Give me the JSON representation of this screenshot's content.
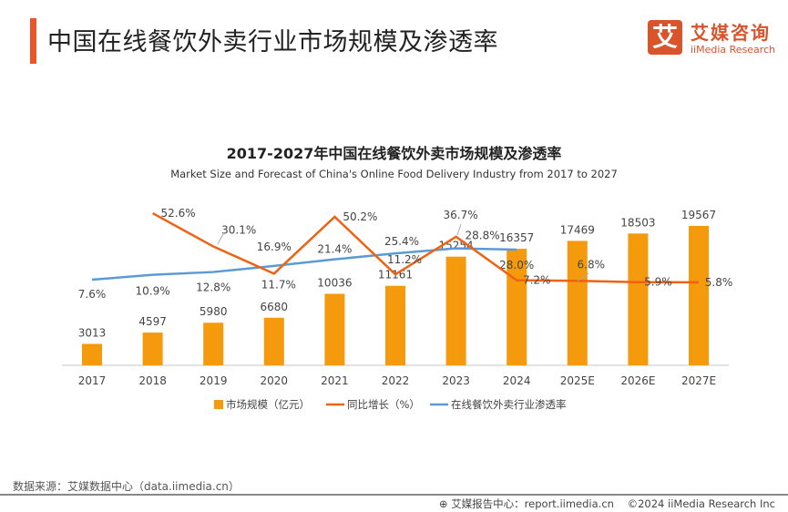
{
  "header": {
    "title": "中国在线餐饮外卖行业市场规模及渗透率",
    "logo_mark": "艾",
    "logo_cn": "艾媒咨询",
    "logo_en": "iiMedia Research"
  },
  "chart_data": {
    "type": "bar+line",
    "title": "2017-2027年中国在线餐饮外卖市场规模及渗透率",
    "subtitle": "Market Size and Forecast of China's Online Food Delivery Industry from 2017 to 2027",
    "categories": [
      "2017",
      "2018",
      "2019",
      "2020",
      "2021",
      "2022",
      "2023",
      "2024",
      "2025E",
      "2026E",
      "2027E"
    ],
    "series": [
      {
        "name": "市场规模（亿元）",
        "type": "bar",
        "color": "#f59a0c",
        "values": [
          3013,
          4597,
          5980,
          6680,
          10036,
          11161,
          15254,
          16357,
          17469,
          18503,
          19567
        ]
      },
      {
        "name": "同比增长（%）",
        "type": "line",
        "color": "#ee6214",
        "values": [
          null,
          52.6,
          30.1,
          11.7,
          50.2,
          11.2,
          36.7,
          7.2,
          6.8,
          5.9,
          5.8
        ]
      },
      {
        "name": "在线餐饮外卖行业渗透率",
        "type": "line",
        "color": "#5b9bd5",
        "values": [
          7.6,
          10.9,
          12.8,
          16.9,
          21.4,
          25.4,
          28.8,
          28.0,
          null,
          null,
          null
        ]
      }
    ],
    "legend": "bottom",
    "grid": false
  },
  "footer": {
    "source": "数据来源：艾媒数据中心（data.iimedia.cn）",
    "report": "艾媒报告中心：report.iimedia.cn",
    "copyright": "©2024  iiMedia Research  Inc"
  }
}
